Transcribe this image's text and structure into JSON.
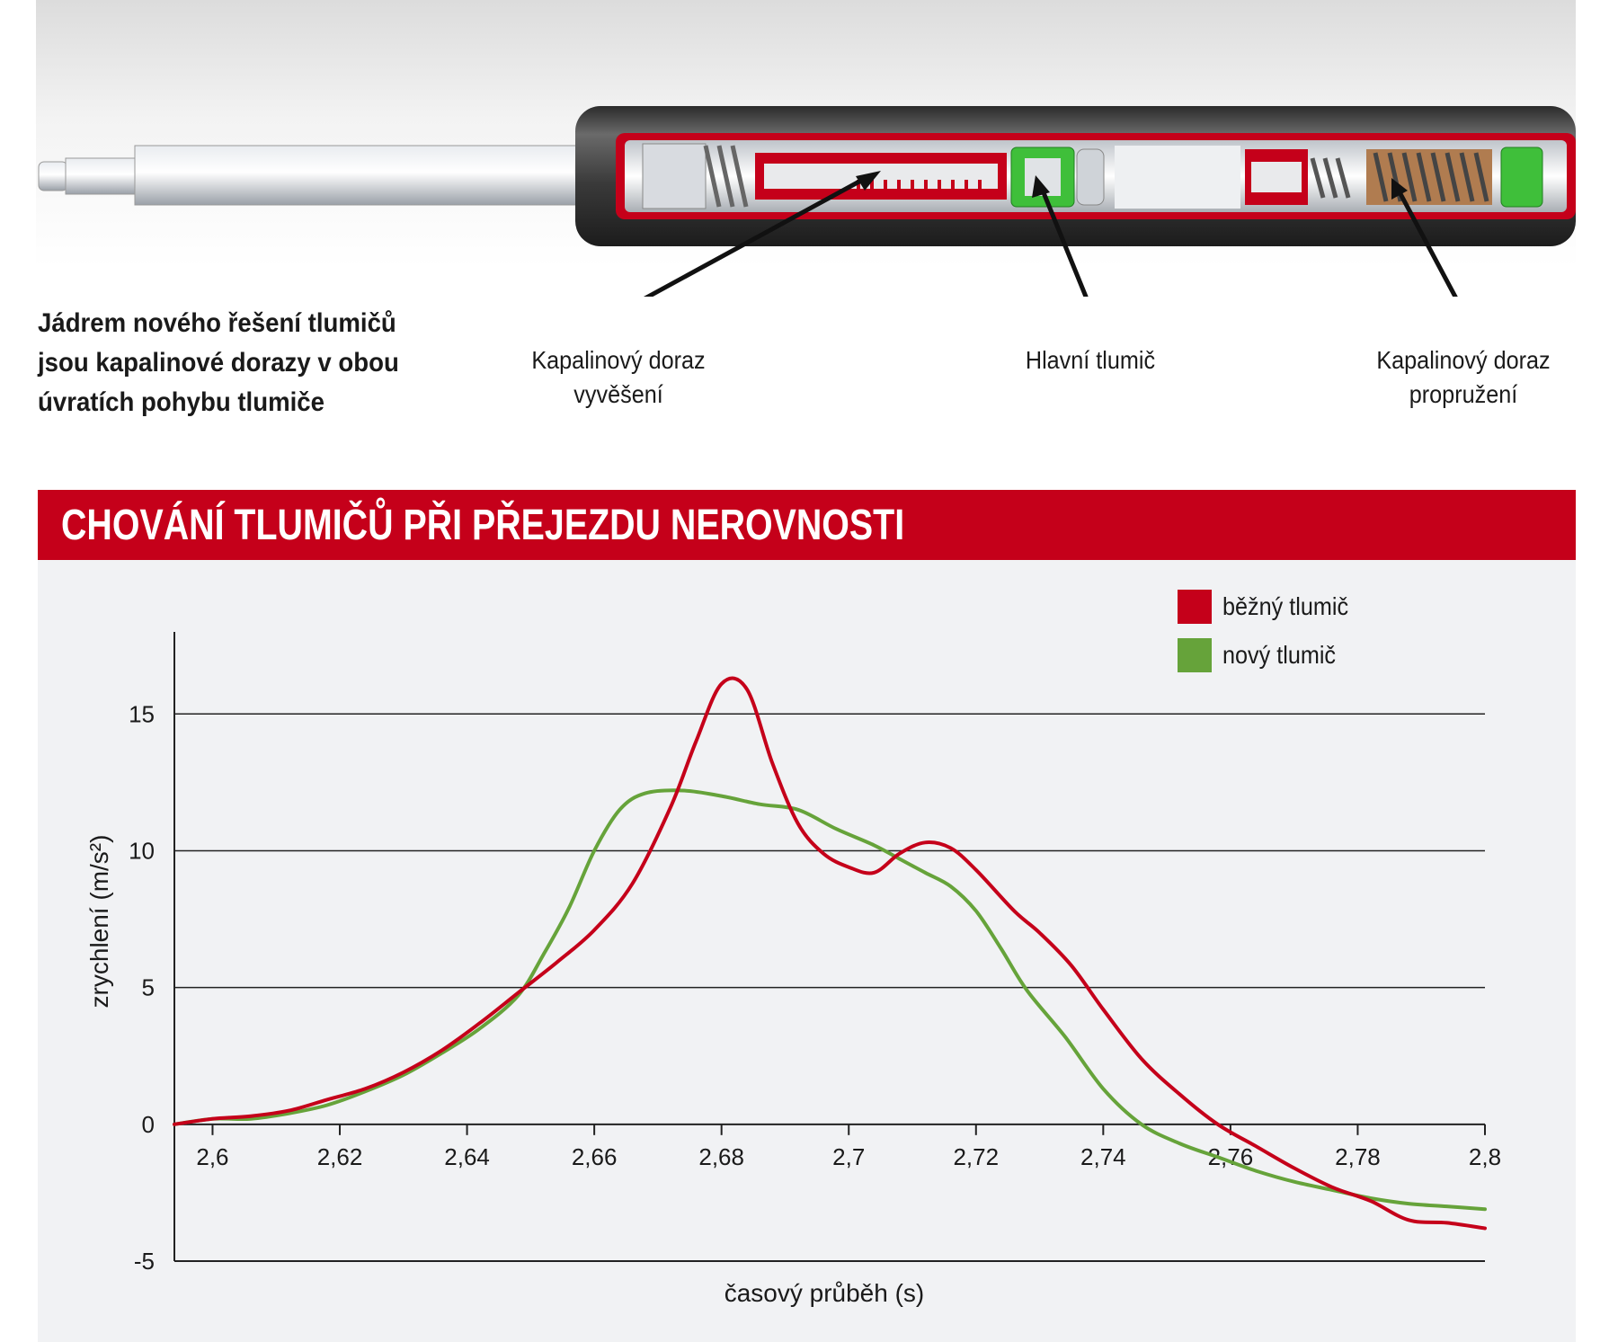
{
  "intro_lines": [
    "Jádrem nového řešení tlumičů",
    "jsou kapalinové dorazy v obou",
    "úvratích pohybu tlumiče"
  ],
  "callouts": {
    "rebound_stop": [
      "Kapalinový doraz",
      "vyvěšení"
    ],
    "main_damper": [
      "Hlavní tlumič"
    ],
    "compression_stop": [
      "Kapalinový doraz",
      "propružení"
    ]
  },
  "title": "CHOVÁNÍ TLUMIČŮ PŘI PŘEJEZDU NEROVNOSTI",
  "colors": {
    "band": "#c5001a",
    "series_red": "#c5001a",
    "series_green": "#66a33a",
    "panel": "#f1f2f4",
    "insert_green": "#3fbf3a"
  },
  "chart_data": {
    "type": "line",
    "xlabel": "časový průběh (s)",
    "ylabel": "zrychlení (m/s²)",
    "xlim": [
      2.594,
      2.8
    ],
    "ylim": [
      -5,
      18
    ],
    "grid": "horizontal at 5, 10, 15",
    "legend_position": "top-right",
    "x_ticks": [
      "2,6",
      "2,62",
      "2,64",
      "2,66",
      "2,68",
      "2,7",
      "2,72",
      "2,74",
      "2,76",
      "2,78",
      "2,8"
    ],
    "x_tick_values": [
      2.6,
      2.62,
      2.64,
      2.66,
      2.68,
      2.7,
      2.72,
      2.74,
      2.76,
      2.78,
      2.8
    ],
    "y_ticks": [
      "15",
      "10",
      "5",
      "0",
      "-5"
    ],
    "y_tick_values": [
      15,
      10,
      5,
      0,
      -5
    ],
    "series": [
      {
        "name": "běžný tlumič",
        "color": "#c5001a",
        "points": [
          [
            2.594,
            0.0
          ],
          [
            2.6,
            0.2
          ],
          [
            2.606,
            0.3
          ],
          [
            2.612,
            0.5
          ],
          [
            2.618,
            0.9
          ],
          [
            2.624,
            1.3
          ],
          [
            2.63,
            1.9
          ],
          [
            2.636,
            2.7
          ],
          [
            2.642,
            3.7
          ],
          [
            2.648,
            4.8
          ],
          [
            2.654,
            5.9
          ],
          [
            2.66,
            7.1
          ],
          [
            2.666,
            8.8
          ],
          [
            2.672,
            11.6
          ],
          [
            2.676,
            14.0
          ],
          [
            2.68,
            16.1
          ],
          [
            2.684,
            15.9
          ],
          [
            2.688,
            13.2
          ],
          [
            2.692,
            11.0
          ],
          [
            2.696,
            9.9
          ],
          [
            2.7,
            9.4
          ],
          [
            2.704,
            9.2
          ],
          [
            2.708,
            9.9
          ],
          [
            2.712,
            10.3
          ],
          [
            2.716,
            10.1
          ],
          [
            2.72,
            9.3
          ],
          [
            2.726,
            7.8
          ],
          [
            2.73,
            7.0
          ],
          [
            2.735,
            5.8
          ],
          [
            2.74,
            4.2
          ],
          [
            2.746,
            2.4
          ],
          [
            2.752,
            1.1
          ],
          [
            2.758,
            0.0
          ],
          [
            2.764,
            -0.8
          ],
          [
            2.77,
            -1.6
          ],
          [
            2.776,
            -2.3
          ],
          [
            2.782,
            -2.8
          ],
          [
            2.788,
            -3.5
          ],
          [
            2.794,
            -3.6
          ],
          [
            2.8,
            -3.8
          ]
        ]
      },
      {
        "name": "nový tlumič",
        "color": "#66a33a",
        "points": [
          [
            2.594,
            0.0
          ],
          [
            2.6,
            0.2
          ],
          [
            2.606,
            0.2
          ],
          [
            2.612,
            0.4
          ],
          [
            2.618,
            0.7
          ],
          [
            2.624,
            1.2
          ],
          [
            2.63,
            1.8
          ],
          [
            2.636,
            2.6
          ],
          [
            2.642,
            3.5
          ],
          [
            2.648,
            4.7
          ],
          [
            2.652,
            6.2
          ],
          [
            2.656,
            7.9
          ],
          [
            2.66,
            10.0
          ],
          [
            2.664,
            11.5
          ],
          [
            2.668,
            12.1
          ],
          [
            2.674,
            12.2
          ],
          [
            2.68,
            12.0
          ],
          [
            2.686,
            11.7
          ],
          [
            2.692,
            11.5
          ],
          [
            2.698,
            10.8
          ],
          [
            2.704,
            10.2
          ],
          [
            2.708,
            9.7
          ],
          [
            2.712,
            9.2
          ],
          [
            2.716,
            8.7
          ],
          [
            2.72,
            7.8
          ],
          [
            2.724,
            6.4
          ],
          [
            2.728,
            4.9
          ],
          [
            2.734,
            3.2
          ],
          [
            2.74,
            1.3
          ],
          [
            2.746,
            0.0
          ],
          [
            2.752,
            -0.7
          ],
          [
            2.758,
            -1.2
          ],
          [
            2.764,
            -1.7
          ],
          [
            2.77,
            -2.1
          ],
          [
            2.776,
            -2.4
          ],
          [
            2.782,
            -2.7
          ],
          [
            2.788,
            -2.9
          ],
          [
            2.794,
            -3.0
          ],
          [
            2.8,
            -3.1
          ]
        ]
      }
    ]
  }
}
